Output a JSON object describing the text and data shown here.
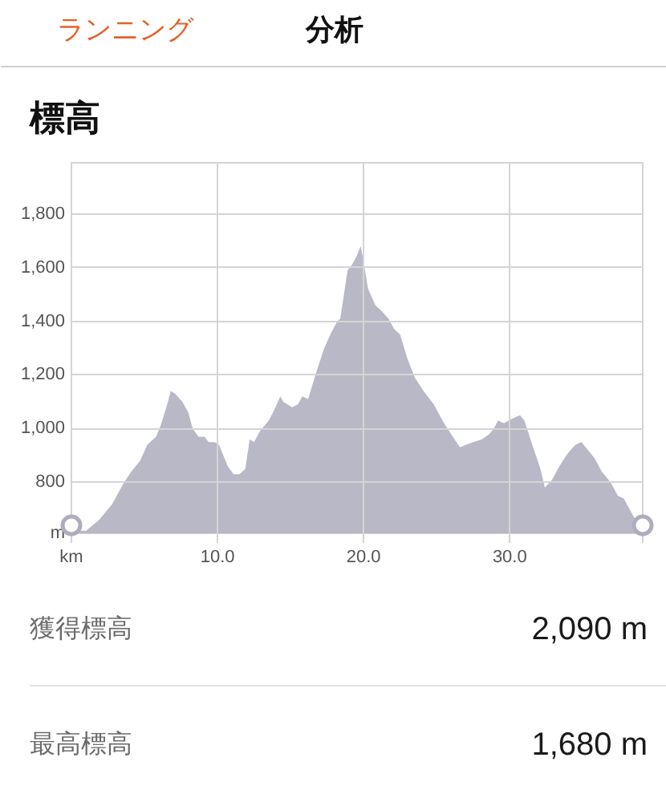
{
  "chart_data": {
    "type": "area",
    "title": "標高",
    "annotations": [
      "ランニング",
      "分析",
      "獲得標高",
      "2,090 m",
      "最高標高",
      "1,680 m"
    ],
    "xlabel": "km",
    "ylabel": "m",
    "xlim": [
      0,
      39.1
    ],
    "ylim": [
      610,
      1990
    ],
    "xticks": [
      {
        "value": 0,
        "label": null
      },
      {
        "value": 10,
        "label": "10.0"
      },
      {
        "value": 20,
        "label": "20.0"
      },
      {
        "value": 30,
        "label": "30.0"
      },
      {
        "value": 39.1,
        "label": null
      }
    ],
    "yticks": [
      800,
      {
        "value": 1000,
        "label": "1,000"
      },
      {
        "value": 1200,
        "label": "1,200"
      },
      {
        "value": 1400,
        "label": "1,400"
      },
      {
        "value": 1600,
        "label": "1,600"
      },
      {
        "value": 1800,
        "label": "1,800"
      }
    ],
    "grid": true,
    "series": [
      {
        "color": "#b9b8c7",
        "x": [
          0,
          1.0,
          1.9,
          2.8,
          3.6,
          4.1,
          4.7,
          5.2,
          5.8,
          6.1,
          6.5,
          6.8,
          7.1,
          7.6,
          8.0,
          8.3,
          8.7,
          9.1,
          9.4,
          9.8,
          10.1,
          10.4,
          10.7,
          11.1,
          11.5,
          11.9,
          12.2,
          12.5,
          12.9,
          13.5,
          13.8,
          14.3,
          14.5,
          15.1,
          15.5,
          15.8,
          16.2,
          16.7,
          17.3,
          17.8,
          18.2,
          18.4,
          18.9,
          19.2,
          19.5,
          19.8,
          20.0,
          20.3,
          20.8,
          21.2,
          21.7,
          22.1,
          22.5,
          23.0,
          23.5,
          24.1,
          24.8,
          25.5,
          26.1,
          26.6,
          27.0,
          27.5,
          28.1,
          28.6,
          28.9,
          29.2,
          29.6,
          29.9,
          30.3,
          30.7,
          31.0,
          31.6,
          32.1,
          32.4,
          32.9,
          33.4,
          34.0,
          34.5,
          34.9,
          35.2,
          35.8,
          36.3,
          36.9,
          37.4,
          37.8,
          38.2,
          38.7,
          39.1
        ],
        "values": [
          620,
          620,
          660,
          720,
          800,
          840,
          880,
          940,
          970,
          1010,
          1080,
          1140,
          1130,
          1100,
          1060,
          1000,
          970,
          970,
          950,
          950,
          940,
          900,
          860,
          830,
          830,
          850,
          960,
          950,
          990,
          1030,
          1060,
          1120,
          1100,
          1080,
          1090,
          1120,
          1110,
          1200,
          1300,
          1360,
          1400,
          1410,
          1590,
          1610,
          1640,
          1680,
          1620,
          1520,
          1460,
          1440,
          1410,
          1370,
          1350,
          1260,
          1190,
          1140,
          1090,
          1020,
          970,
          930,
          940,
          950,
          960,
          980,
          1000,
          1030,
          1020,
          1030,
          1040,
          1050,
          1030,
          930,
          850,
          780,
          810,
          860,
          910,
          940,
          950,
          930,
          890,
          840,
          800,
          750,
          740,
          700,
          650,
          620
        ]
      },
      {
        "type": "scatter",
        "color": "#aeadbd",
        "marker": "circle",
        "x": [
          0,
          39.1
        ],
        "values": [
          640,
          640
        ]
      }
    ]
  }
}
